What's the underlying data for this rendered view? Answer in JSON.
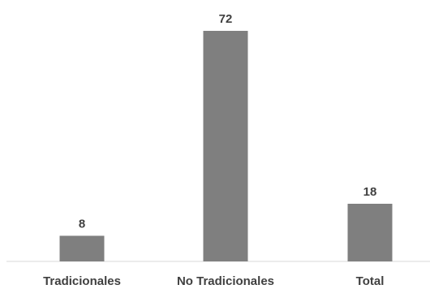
{
  "chart_data": {
    "type": "bar",
    "categories": [
      "Tradicionales",
      "No Tradicionales",
      "Total"
    ],
    "values": [
      8,
      72,
      18
    ],
    "data_labels": [
      "8",
      "72",
      "18"
    ],
    "title": "",
    "xlabel": "",
    "ylabel": "",
    "ylim": [
      0,
      80
    ],
    "grid": false,
    "legend": "none",
    "colors": {
      "bar": "#7f7f7f",
      "axis": "#d9d9d9",
      "text": "#404040"
    }
  }
}
